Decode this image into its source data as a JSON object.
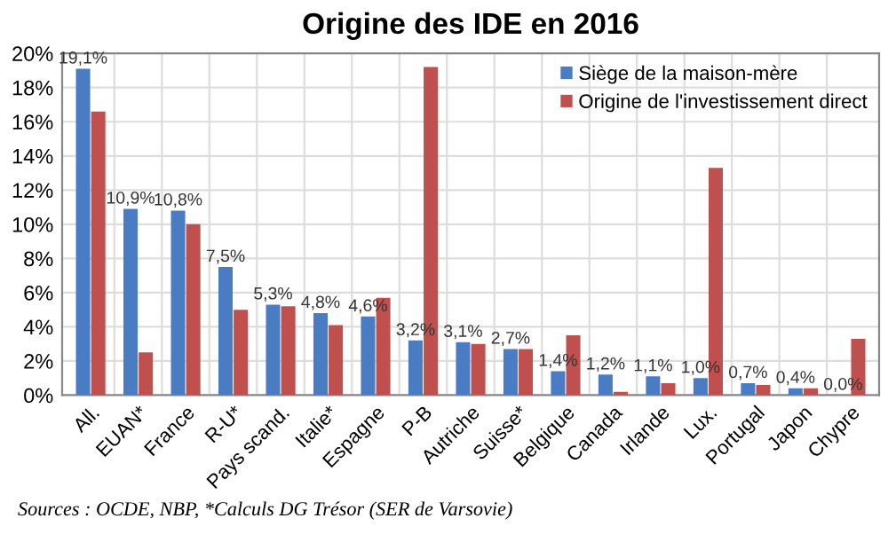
{
  "chart_data": {
    "type": "bar",
    "title": "Origine des IDE en 2016",
    "categories": [
      "All.",
      "EUAN*",
      "France",
      "R-U*",
      "Pays scand.",
      "Italie*",
      "Espagne",
      "P-B",
      "Autriche",
      "Suisse*",
      "Belgique",
      "Canada",
      "Irlande",
      "Lux.",
      "Portugal",
      "Japon",
      "Chypre"
    ],
    "series": [
      {
        "name": "Siège de la maison-mère",
        "color": "#4a7cc4",
        "values": [
          19.1,
          10.9,
          10.8,
          7.5,
          5.3,
          4.8,
          4.6,
          3.2,
          3.1,
          2.7,
          1.4,
          1.2,
          1.1,
          1.0,
          0.7,
          0.4,
          0.0
        ],
        "value_labels": [
          "19,1%",
          "10,9%",
          "10,8%",
          "7,5%",
          "5,3%",
          "4,8%",
          "4,6%",
          "3,2%",
          "3,1%",
          "2,7%",
          "1,4%",
          "1,2%",
          "1,1%",
          "1,0%",
          "0,7%",
          "0,4%",
          "0,0%"
        ]
      },
      {
        "name": "Origine de l'investissement direct",
        "color": "#c0504d",
        "values": [
          16.6,
          2.5,
          10.0,
          5.0,
          5.2,
          4.1,
          5.7,
          19.2,
          3.0,
          2.7,
          3.5,
          0.2,
          0.7,
          13.3,
          0.6,
          0.4,
          3.3
        ]
      }
    ],
    "ylim": [
      0,
      20
    ],
    "yticks": [
      {
        "value": 0,
        "label": "0%"
      },
      {
        "value": 2,
        "label": "2%"
      },
      {
        "value": 4,
        "label": "4%"
      },
      {
        "value": 6,
        "label": "6%"
      },
      {
        "value": 8,
        "label": "8%"
      },
      {
        "value": 10,
        "label": "10%"
      },
      {
        "value": 12,
        "label": "12%"
      },
      {
        "value": 14,
        "label": "14%"
      },
      {
        "value": 16,
        "label": "16%"
      },
      {
        "value": 18,
        "label": "18%"
      },
      {
        "value": 20,
        "label": "20%"
      }
    ],
    "grid": true,
    "legend": "top right",
    "annotations": [
      "Sources : OCDE, NBP, *Calculs DG Trésor (SER de Varsovie)"
    ]
  }
}
